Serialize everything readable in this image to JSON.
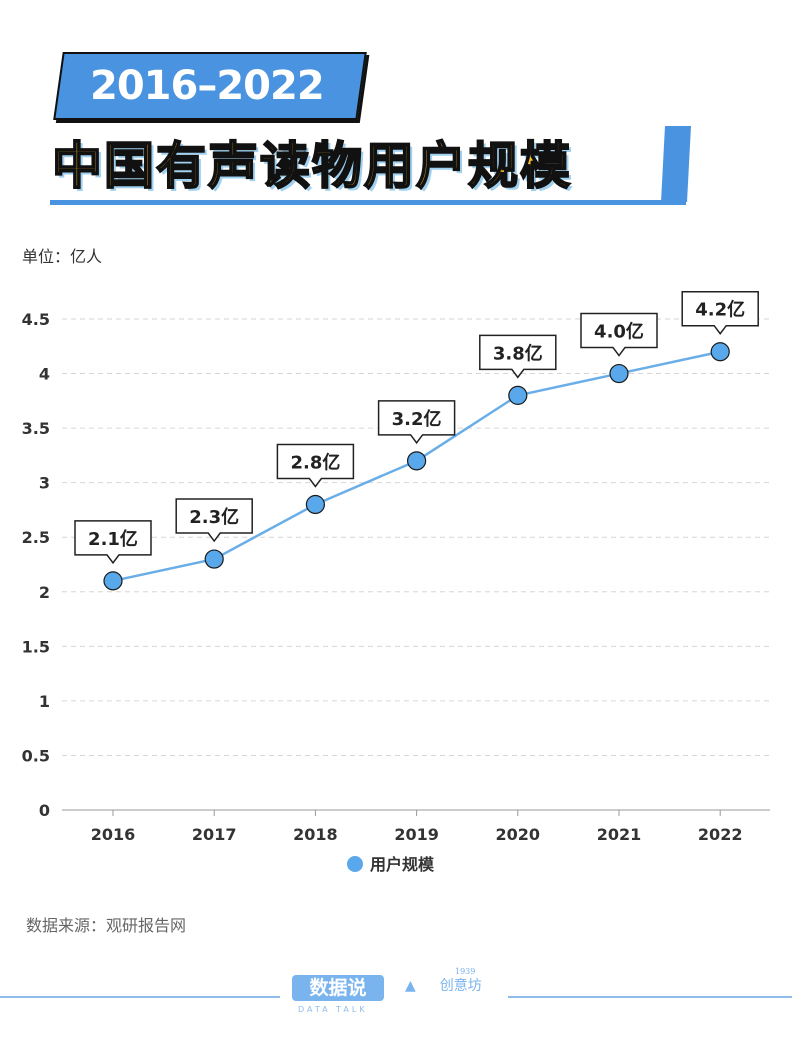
{
  "title": {
    "years": "2016–2022",
    "main": "中国有声读物用户规模"
  },
  "unit_label": "单位：亿人",
  "source": "数据来源：观研报告网",
  "footer": {
    "logo_text": "数据说",
    "logo_sub": "DATA TALK",
    "logo2_text": "创意坊",
    "logo2_year": "1939"
  },
  "colors": {
    "accent": "#4a93e0",
    "title_yellow": "#f8bb2a",
    "line": "#6aaee8",
    "point": "#5aa8ec"
  },
  "chart_data": {
    "type": "line",
    "title": "中国有声读物用户规模",
    "xlabel": "",
    "ylabel": "亿人",
    "categories": [
      "2016",
      "2017",
      "2018",
      "2019",
      "2020",
      "2021",
      "2022"
    ],
    "series": [
      {
        "name": "用户规模",
        "values": [
          2.1,
          2.3,
          2.8,
          3.2,
          3.8,
          4.0,
          4.2
        ]
      }
    ],
    "data_labels": [
      "2.1亿",
      "2.3亿",
      "2.8亿",
      "3.2亿",
      "3.8亿",
      "4.0亿",
      "4.2亿"
    ],
    "ylim": [
      0,
      4.5
    ],
    "yticks": [
      "0",
      "0.5",
      "1",
      "1.5",
      "2",
      "2.5",
      "3",
      "3.5",
      "4",
      "4.5"
    ],
    "grid": true,
    "legend": "bottom-center"
  }
}
